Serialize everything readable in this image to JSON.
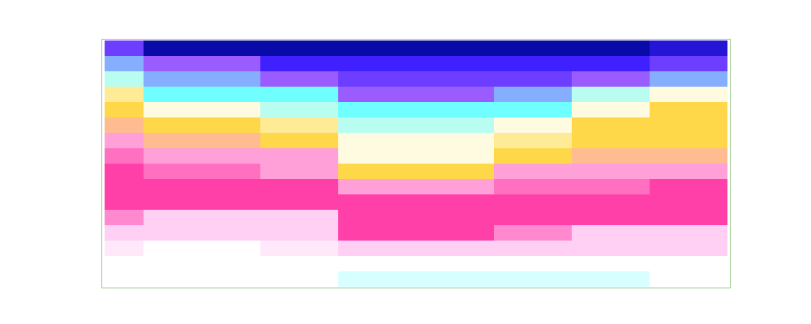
{
  "chart_data": {
    "type": "heatmap",
    "tick_labels": false,
    "zlim": [
      0,
      10
    ],
    "colors": [
      "#0a0aa8",
      "#4020ff",
      "#9a5cff",
      "#70ffff",
      "#fffbe0",
      "#ffd84a",
      "#ffa0d8",
      "#ff40a8",
      "#ffd0f4",
      "#ffffff",
      "#d8ffff"
    ],
    "cells": [
      [
        1.5,
        0,
        0,
        0,
        0,
        0,
        0,
        0,
        0,
        0,
        0,
        0,
        0,
        0,
        0.5,
        0.5
      ],
      [
        2.5,
        2,
        2,
        2,
        1,
        1,
        1,
        1,
        1,
        1,
        1,
        1,
        1,
        1,
        1.5,
        1.5
      ],
      [
        3.5,
        2.5,
        2.5,
        2.5,
        2,
        2,
        1.5,
        1.5,
        1.5,
        1.5,
        1.5,
        1.5,
        2,
        2,
        2.5,
        2.5
      ],
      [
        4.5,
        3,
        3,
        3,
        3,
        3,
        2,
        2,
        2,
        2,
        2.5,
        2.5,
        3.5,
        3.5,
        4,
        4
      ],
      [
        5,
        4,
        4,
        4,
        3.5,
        3.5,
        3,
        3,
        3,
        3,
        3,
        3,
        4,
        4,
        5,
        5
      ],
      [
        5.5,
        5,
        5,
        5,
        4.5,
        4.5,
        3.5,
        3.5,
        3.5,
        3.5,
        4,
        4,
        5,
        5,
        5,
        5
      ],
      [
        6,
        5.5,
        5.5,
        5.5,
        5,
        5,
        4,
        4,
        4,
        4,
        4.5,
        4.5,
        5,
        5,
        5,
        5
      ],
      [
        6.5,
        6,
        6,
        6,
        6,
        6,
        4,
        4,
        4,
        4,
        5,
        5,
        5.5,
        5.5,
        5.5,
        5.5
      ],
      [
        7,
        6.5,
        6.5,
        6.5,
        6,
        6,
        5,
        5,
        5,
        5,
        6,
        6,
        6,
        6,
        6,
        6
      ],
      [
        7,
        7,
        7,
        7,
        7,
        7,
        6,
        6,
        6,
        6,
        6.5,
        6.5,
        6.5,
        6.5,
        7,
        7
      ],
      [
        7,
        7,
        7,
        7,
        7,
        7,
        7,
        7,
        7,
        7,
        7,
        7,
        7,
        7,
        7,
        7
      ],
      [
        7.5,
        8,
        8,
        8,
        8,
        8,
        7,
        7,
        7,
        7,
        7,
        7,
        7,
        7,
        7,
        7
      ],
      [
        8,
        8,
        8,
        8,
        8,
        8,
        7,
        7,
        7,
        7,
        7.5,
        7.5,
        8,
        8,
        8,
        8
      ],
      [
        8.5,
        9,
        9,
        9,
        8.5,
        8.5,
        8,
        8,
        8,
        8,
        8,
        8,
        8,
        8,
        8,
        8
      ],
      [
        9,
        9,
        9,
        9,
        9,
        9,
        9,
        9,
        9,
        9,
        9,
        9,
        9,
        9,
        9,
        9
      ],
      [
        9,
        9,
        9,
        9,
        9,
        9,
        10,
        10,
        10,
        10,
        10,
        10,
        10,
        10,
        9,
        9
      ]
    ]
  }
}
